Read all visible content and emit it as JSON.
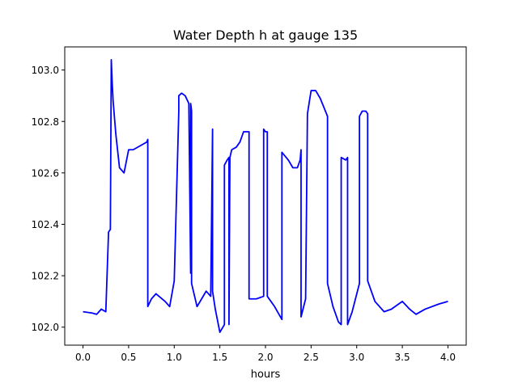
{
  "chart_data": {
    "type": "line",
    "title": "Water Depth h at gauge 135",
    "xlabel": "hours",
    "ylabel": "",
    "xlim": [
      -0.2,
      4.2
    ],
    "ylim": [
      101.93,
      103.09
    ],
    "xticks": [
      0.0,
      0.5,
      1.0,
      1.5,
      2.0,
      2.5,
      3.0,
      3.5,
      4.0
    ],
    "xtick_labels": [
      "0.0",
      "0.5",
      "1.0",
      "1.5",
      "2.0",
      "2.5",
      "3.0",
      "3.5",
      "4.0"
    ],
    "yticks": [
      102.0,
      102.2,
      102.4,
      102.6,
      102.8,
      103.0
    ],
    "ytick_labels": [
      "102.0",
      "102.2",
      "102.4",
      "102.6",
      "102.8",
      "103.0"
    ],
    "grid": false,
    "series": [
      {
        "color": "#0000ff",
        "x": [
          0.0,
          0.1,
          0.15,
          0.2,
          0.25,
          0.28,
          0.3,
          0.31,
          0.32,
          0.33,
          0.36,
          0.4,
          0.45,
          0.5,
          0.55,
          0.65,
          0.7,
          0.71,
          0.71,
          0.75,
          0.8,
          0.9,
          0.95,
          1.0,
          1.05,
          1.05,
          1.08,
          1.12,
          1.16,
          1.18,
          1.18,
          1.19,
          1.19,
          1.25,
          1.3,
          1.35,
          1.4,
          1.42,
          1.42,
          1.45,
          1.5,
          1.55,
          1.55,
          1.58,
          1.6,
          1.6,
          1.61,
          1.63,
          1.68,
          1.72,
          1.76,
          1.8,
          1.82,
          1.82,
          1.9,
          1.98,
          1.98,
          2.0,
          2.02,
          2.02,
          2.1,
          2.18,
          2.18,
          2.25,
          2.3,
          2.35,
          2.38,
          2.39,
          2.39,
          2.44,
          2.46,
          2.5,
          2.55,
          2.6,
          2.68,
          2.68,
          2.74,
          2.8,
          2.83,
          2.83,
          2.88,
          2.9,
          2.9,
          2.95,
          3.03,
          3.03,
          3.06,
          3.1,
          3.12,
          3.12,
          3.2,
          3.3,
          3.38,
          3.42,
          3.5,
          3.58,
          3.65,
          3.75,
          3.9,
          4.0
        ],
        "y": [
          102.06,
          102.055,
          102.05,
          102.07,
          102.06,
          102.37,
          102.38,
          103.04,
          102.95,
          102.88,
          102.75,
          102.62,
          102.6,
          102.69,
          102.69,
          102.71,
          102.72,
          102.73,
          102.08,
          102.11,
          102.13,
          102.1,
          102.08,
          102.18,
          102.84,
          102.9,
          102.91,
          102.9,
          102.87,
          102.21,
          102.87,
          102.84,
          102.17,
          102.08,
          102.11,
          102.14,
          102.12,
          102.77,
          102.14,
          102.07,
          101.98,
          102.01,
          102.63,
          102.65,
          102.66,
          102.01,
          102.66,
          102.69,
          102.7,
          102.72,
          102.76,
          102.76,
          102.76,
          102.11,
          102.11,
          102.12,
          102.77,
          102.76,
          102.76,
          102.12,
          102.08,
          102.03,
          102.68,
          102.65,
          102.62,
          102.62,
          102.65,
          102.69,
          102.04,
          102.11,
          102.83,
          102.92,
          102.92,
          102.89,
          102.82,
          102.17,
          102.08,
          102.02,
          102.01,
          102.66,
          102.65,
          102.66,
          102.01,
          102.06,
          102.17,
          102.82,
          102.84,
          102.84,
          102.83,
          102.18,
          102.1,
          102.06,
          102.07,
          102.08,
          102.1,
          102.07,
          102.05,
          102.07,
          102.09,
          102.1
        ]
      }
    ]
  }
}
